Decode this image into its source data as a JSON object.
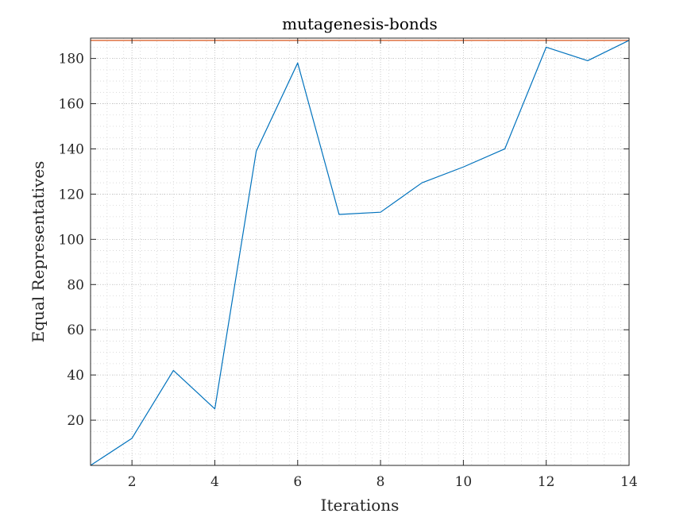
{
  "chart_data": {
    "type": "line",
    "title": "mutagenesis-bonds",
    "xlabel": "Iterations",
    "ylabel": "Equal Representatives",
    "xlim": [
      1,
      14
    ],
    "ylim": [
      0,
      189
    ],
    "xticks": [
      2,
      4,
      6,
      8,
      10,
      12,
      14
    ],
    "yticks": [
      20,
      40,
      60,
      80,
      100,
      120,
      140,
      160,
      180
    ],
    "grid": "major and minor, dotted",
    "legend": "none",
    "series": [
      {
        "color": "#0072BD",
        "x": [
          1,
          2,
          3,
          4,
          5,
          6,
          7,
          8,
          9,
          10,
          11,
          12,
          13,
          14
        ],
        "y": [
          0,
          12,
          42,
          25,
          139,
          178,
          111,
          112,
          125,
          132,
          140,
          185,
          179,
          188
        ]
      }
    ],
    "reference_line": {
      "y": 188,
      "color": "#D95319"
    }
  }
}
